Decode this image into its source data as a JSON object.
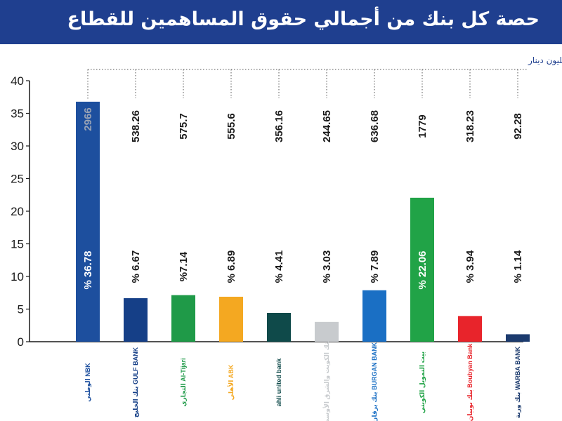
{
  "title": "حصة كل بنك من أجمالي حقوق المساهمين للقطاع",
  "chart_data": {
    "type": "bar",
    "title": "حصة كل بنك من أجمالي حقوق المساهمين للقطاع",
    "subtitle": "قيمة حقوق المساهمين بالمليون دينار",
    "ylim": [
      0,
      40
    ],
    "yticks": [
      "0",
      "5",
      "10",
      "15",
      "20",
      "25",
      "30",
      "35",
      "40"
    ],
    "grid": false,
    "categories": [
      "NBK",
      "Gulf Bank",
      "Al-Tijari",
      "ABK",
      "ahli united bank",
      "Bank of Kuwait Middle East",
      "Burgan Bank",
      "Kuwait Finance House",
      "Boubyan Bank",
      "Warba Bank"
    ],
    "bank_labels": [
      "الوطني NBK",
      "بنك الخليج GULF BANK",
      "التجاري Al-Tijari",
      "الأهلي ABK",
      "ahli united bank",
      "بنك الكويت والشرق الأوسط",
      "بنك برقان BURGAN BANK",
      "بيت التمويل الكويتي",
      "بنك بوبيان Boubyan Bank",
      "بنك وربة WARBA BANK"
    ],
    "values": [
      36.78,
      6.67,
      7.14,
      6.89,
      4.41,
      3.03,
      7.89,
      22.06,
      3.94,
      1.14
    ],
    "percent_labels": [
      "% 36.78",
      "% 6.67",
      "%7.14",
      "% 6.89",
      "% 4.41",
      "% 3.03",
      "% 7.89",
      "% 22.06",
      "% 3.94",
      "% 1.14"
    ],
    "equity_labels": [
      "2966",
      "538.26",
      "575.7",
      "555.6",
      "356.16",
      "244.65",
      "636.68",
      "1779",
      "318.23",
      "92.28"
    ],
    "colors": [
      "#1d4f9e",
      "#153f87",
      "#1f9a48",
      "#f4a821",
      "#0f4a4a",
      "#c8cbce",
      "#1a6fc4",
      "#21a347",
      "#e8242b",
      "#1c3b6e"
    ]
  },
  "colors": {
    "title_bar": "#1f3f8f",
    "title_text": "#ffffff",
    "axis": "#1a1a1a",
    "subtitle": "#1f3f8f"
  }
}
